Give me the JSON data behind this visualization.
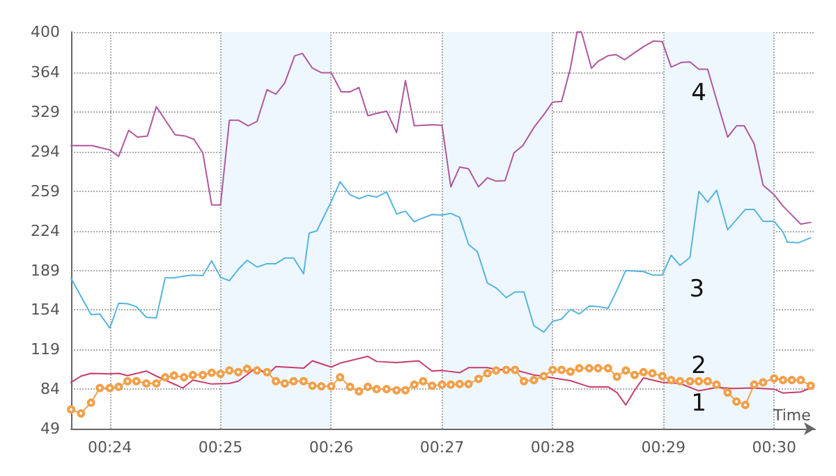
{
  "chart_data": {
    "type": "line",
    "xlabel": "Time",
    "xlim": [
      23.65,
      30.37
    ],
    "ylim": [
      49,
      400
    ],
    "xticks": [
      {
        "value": 24,
        "label": "00:24"
      },
      {
        "value": 25,
        "label": "00:25"
      },
      {
        "value": 26,
        "label": "00:26"
      },
      {
        "value": 27,
        "label": "00:27"
      },
      {
        "value": 28,
        "label": "00:28"
      },
      {
        "value": 29,
        "label": "00:29"
      },
      {
        "value": 30,
        "label": "00:30"
      }
    ],
    "yticks": [
      49,
      84,
      119,
      154,
      189,
      224,
      259,
      294,
      329,
      364,
      400
    ],
    "grid": true,
    "legend": false,
    "line_style": "solid",
    "series": [
      {
        "name": "4",
        "color": "#b0579f",
        "marker": "none",
        "x": [
          23.65,
          23.84,
          24.0,
          24.08,
          24.17,
          24.25,
          24.34,
          24.42,
          24.59,
          24.68,
          24.76,
          24.84,
          24.92,
          25.0,
          25.08,
          25.16,
          25.25,
          25.33,
          25.42,
          25.5,
          25.58,
          25.67,
          25.74,
          25.83,
          25.91,
          26.0,
          26.09,
          26.17,
          26.25,
          26.33,
          26.41,
          26.5,
          26.59,
          26.67,
          26.75,
          26.91,
          27.0,
          27.08,
          27.16,
          27.24,
          27.33,
          27.41,
          27.49,
          27.57,
          27.65,
          27.73,
          27.83,
          27.92,
          28.0,
          28.08,
          28.16,
          28.22,
          28.26,
          28.35,
          28.41,
          28.5,
          28.57,
          28.65,
          28.73,
          28.82,
          28.91,
          28.99,
          29.07,
          29.16,
          29.24,
          29.32,
          29.4,
          29.48,
          29.58,
          29.66,
          29.73,
          29.82,
          29.9,
          30.0,
          30.08,
          30.16,
          30.24,
          30.33
        ],
        "values": [
          299.5,
          299.5,
          295.6,
          290,
          313,
          307,
          308,
          334,
          309,
          308,
          305,
          293,
          247,
          247,
          322,
          322,
          317,
          321,
          349,
          345,
          355,
          379,
          381,
          368,
          364,
          364,
          347,
          347,
          351,
          326,
          328,
          330,
          311,
          357,
          317,
          318,
          317.5,
          263,
          280.5,
          279,
          263,
          271,
          268,
          268.5,
          293,
          299.5,
          315.5,
          327,
          338,
          338.5,
          368,
          400,
          400,
          368,
          374,
          379,
          380,
          375.5,
          381,
          387,
          392,
          391.5,
          369,
          373,
          373.5,
          367,
          367,
          340,
          307,
          317,
          317,
          301,
          264.5,
          256,
          246,
          238,
          230,
          231.5
        ]
      },
      {
        "name": "3",
        "color": "#55b4e0",
        "marker": "none",
        "x": [
          23.65,
          23.74,
          23.83,
          23.91,
          24.0,
          24.08,
          24.16,
          24.24,
          24.33,
          24.42,
          24.5,
          24.58,
          24.67,
          24.75,
          24.84,
          24.92,
          25.0,
          25.08,
          25.16,
          25.24,
          25.33,
          25.42,
          25.5,
          25.58,
          25.66,
          25.75,
          25.8,
          25.87,
          26.0,
          26.08,
          26.17,
          26.25,
          26.33,
          26.41,
          26.5,
          26.59,
          26.67,
          26.75,
          26.79,
          26.91,
          27.0,
          27.08,
          27.16,
          27.24,
          27.32,
          27.41,
          27.49,
          27.58,
          27.66,
          27.74,
          27.83,
          27.92,
          28.0,
          28.08,
          28.16,
          28.24,
          28.33,
          28.41,
          28.5,
          28.58,
          28.66,
          28.74,
          28.82,
          28.9,
          28.99,
          29.07,
          29.15,
          29.24,
          29.32,
          29.4,
          29.48,
          29.58,
          29.66,
          29.74,
          29.82,
          29.9,
          30.0,
          30.08,
          30.12,
          30.22,
          30.33
        ],
        "values": [
          182,
          166,
          150,
          150.5,
          138,
          160,
          159.5,
          157,
          147.5,
          147,
          182.5,
          182.5,
          184,
          185,
          184.5,
          197.5,
          183,
          180,
          190,
          198,
          192,
          195,
          195,
          200,
          200,
          186,
          222,
          224,
          250,
          267.5,
          256,
          252.5,
          255.5,
          254,
          258.5,
          239,
          241.5,
          232,
          234,
          238.5,
          238,
          239.5,
          236,
          212,
          205.5,
          178,
          173.5,
          165,
          170,
          170,
          140,
          134.5,
          144,
          146,
          154.5,
          150.5,
          157.5,
          157,
          155.5,
          171.5,
          189,
          188.5,
          188,
          185,
          185,
          202.5,
          193.5,
          200.5,
          259,
          249.5,
          260,
          225,
          234,
          243,
          243,
          232.5,
          232.5,
          223,
          214,
          213.5,
          218
        ]
      },
      {
        "name": "2",
        "color": "#f0a04b",
        "marker": "circle",
        "x": [
          23.65,
          23.74,
          23.83,
          23.91,
          24.0,
          24.08,
          24.16,
          24.24,
          24.33,
          24.42,
          24.5,
          24.58,
          24.67,
          24.75,
          24.84,
          24.92,
          25.0,
          25.08,
          25.16,
          25.24,
          25.33,
          25.42,
          25.5,
          25.58,
          25.66,
          25.75,
          25.83,
          25.91,
          26.0,
          26.08,
          26.17,
          26.25,
          26.33,
          26.41,
          26.5,
          26.59,
          26.67,
          26.75,
          26.83,
          26.91,
          27.0,
          27.08,
          27.16,
          27.24,
          27.33,
          27.41,
          27.49,
          27.58,
          27.66,
          27.74,
          27.83,
          27.92,
          28.0,
          28.08,
          28.16,
          28.24,
          28.33,
          28.41,
          28.5,
          28.58,
          28.66,
          28.74,
          28.82,
          28.9,
          28.99,
          29.07,
          29.15,
          29.24,
          29.32,
          29.4,
          29.48,
          29.58,
          29.66,
          29.74,
          29.82,
          29.9,
          30.0,
          30.08,
          30.16,
          30.24,
          30.33
        ],
        "values": [
          66,
          62.5,
          72,
          85,
          85,
          86,
          91,
          91,
          89,
          89,
          94.5,
          96,
          94.5,
          96.5,
          96.5,
          98.5,
          97.5,
          100.5,
          99,
          102,
          100.5,
          99,
          91,
          89,
          91,
          91,
          87,
          86.5,
          86.5,
          94.5,
          86,
          82,
          86,
          84,
          84,
          83,
          83,
          88,
          91,
          87,
          88,
          88,
          88.5,
          88.5,
          93,
          98,
          100.5,
          101,
          101,
          91,
          92,
          95.5,
          101,
          101,
          99.5,
          102.5,
          102.5,
          102.5,
          102.5,
          95,
          100.5,
          96.5,
          99,
          98,
          95.5,
          92,
          91,
          91,
          91,
          91,
          88,
          81,
          73,
          70,
          88,
          90,
          93.5,
          92,
          92,
          92,
          87
        ]
      },
      {
        "name": "1",
        "color": "#c83c6a",
        "marker": "none",
        "x": [
          23.65,
          23.74,
          23.83,
          24.0,
          24.08,
          24.16,
          24.33,
          24.42,
          24.66,
          24.75,
          24.92,
          25.08,
          25.16,
          25.33,
          25.42,
          25.5,
          25.75,
          25.83,
          26.0,
          26.08,
          26.33,
          26.41,
          26.59,
          26.79,
          26.91,
          27.0,
          27.16,
          27.24,
          27.41,
          27.49,
          27.66,
          27.83,
          28.0,
          28.16,
          28.33,
          28.5,
          28.58,
          28.66,
          28.74,
          28.82,
          28.99,
          29.15,
          29.32,
          29.48,
          29.63,
          29.8,
          30.0,
          30.08,
          30.24,
          30.33
        ],
        "values": [
          90,
          95.5,
          98,
          97.5,
          98,
          96,
          100,
          95.5,
          85,
          92,
          88.5,
          89,
          91,
          103.5,
          96.5,
          104,
          102.5,
          109,
          103.5,
          107,
          113,
          108.5,
          107.5,
          109,
          100,
          100.5,
          98.5,
          103,
          103,
          101.5,
          101,
          96.5,
          94,
          91.5,
          86,
          86,
          81,
          70,
          83,
          94,
          90,
          89,
          82.5,
          85.5,
          84.5,
          85,
          84,
          80.5,
          81.5,
          85
        ]
      }
    ]
  }
}
